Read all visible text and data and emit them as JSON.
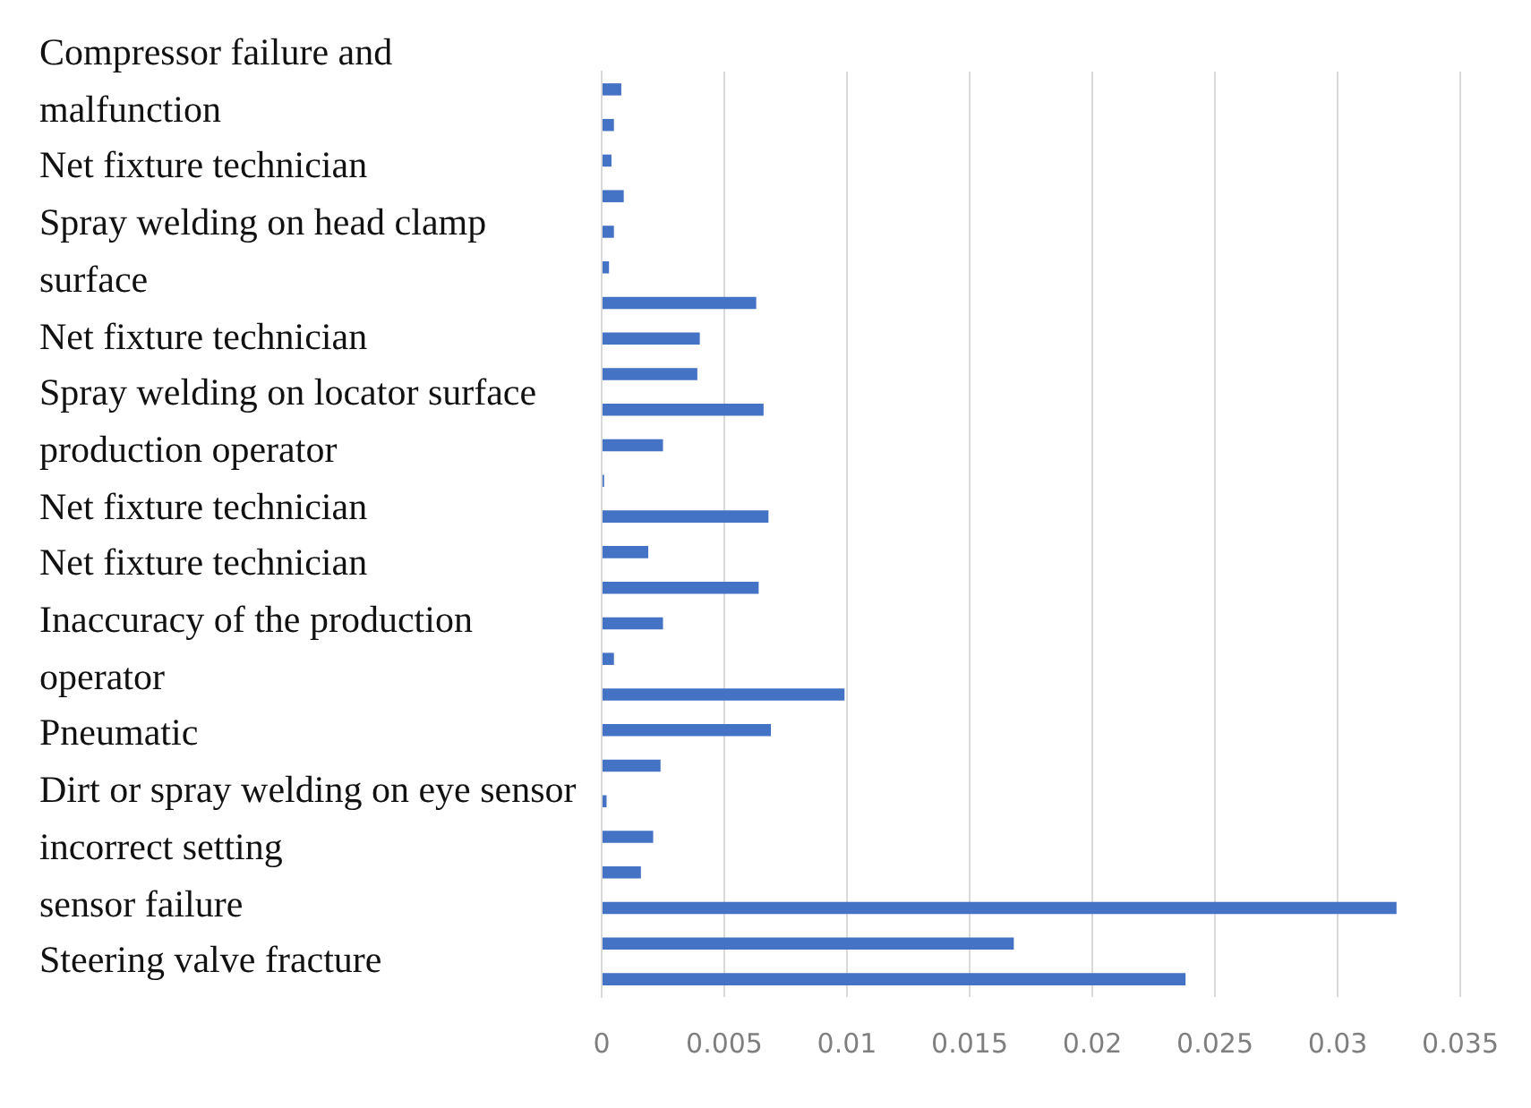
{
  "chart_data": {
    "type": "bar",
    "orientation": "horizontal",
    "categories": [
      null,
      null,
      null,
      null,
      null,
      null,
      null,
      null,
      null,
      null,
      null,
      null,
      null,
      null,
      null,
      null,
      null,
      null,
      null,
      null,
      null,
      null,
      null,
      null,
      null,
      null
    ],
    "values": [
      0.0008,
      0.0005,
      0.0004,
      0.0009,
      0.0005,
      0.0003,
      0.0063,
      0.004,
      0.0039,
      0.0066,
      0.0025,
      0.0001,
      0.0068,
      0.0019,
      0.0064,
      0.0025,
      0.0005,
      0.0099,
      0.0069,
      0.0024,
      0.0002,
      0.0021,
      0.0016,
      0.0324,
      0.0168,
      0.0238
    ],
    "color": "#4472c4",
    "xlim": [
      0,
      0.035
    ],
    "xticks": [
      0,
      0.005,
      0.01,
      0.015,
      0.02,
      0.025,
      0.03,
      0.035
    ],
    "grid": "x",
    "annotations": [
      "Compressor failure and malfunction",
      "Net fixture technician",
      "Spray welding on head clamp surface",
      "Net fixture technician",
      "Spray welding on locator surface",
      "production operator",
      "Net fixture technician",
      "Net fixture technician",
      "Inaccuracy of the production operator",
      "Pneumatic",
      "Dirt or spray welding on eye sensor",
      "incorrect setting",
      "sensor failure",
      "Steering valve fracture"
    ]
  }
}
